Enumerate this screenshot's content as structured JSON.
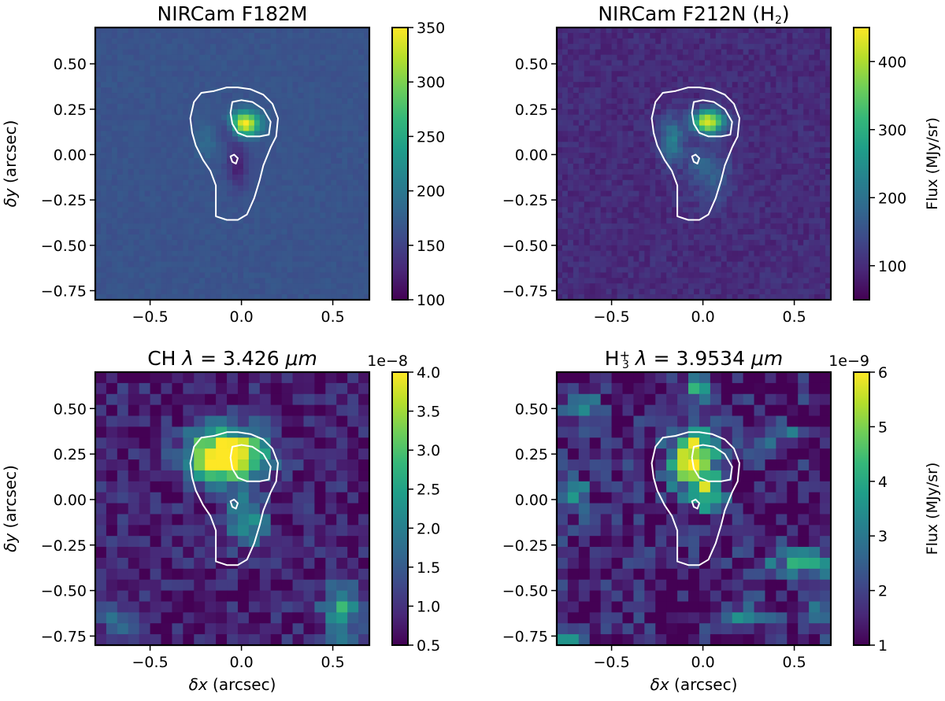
{
  "chart_data": [
    {
      "type": "heatmap",
      "title": "NIRCam F182M",
      "title_parts": [
        {
          "t": "NIRCam F182M"
        }
      ],
      "xlabel": "",
      "ylabel": "δy (arcsec)",
      "xlim": [
        -0.8,
        0.7
      ],
      "ylim": [
        -0.8,
        0.7
      ],
      "xticks": [
        -0.5,
        0.0,
        0.5
      ],
      "xtick_labels": [
        "−0.5",
        "0.0",
        "0.5"
      ],
      "yticks": [
        0.5,
        0.25,
        0.0,
        -0.25,
        -0.5,
        -0.75
      ],
      "ytick_labels": [
        "0.50",
        "0.25",
        "0.00",
        "−0.25",
        "−0.50",
        "−0.75"
      ],
      "colorbar": {
        "vmin": 100,
        "vmax": 350,
        "ticks": [
          100,
          150,
          200,
          250,
          300,
          350
        ],
        "tick_labels": [
          "100",
          "150",
          "200",
          "250",
          "300",
          "350"
        ],
        "label": "",
        "offset": ""
      },
      "grid": {
        "resolution": 0.03,
        "background": 165,
        "noise": 5,
        "seed": 11,
        "blobs": [
          {
            "x": 0.02,
            "y": 0.17,
            "sx": 0.055,
            "sy": 0.045,
            "amp": 190
          },
          {
            "x": -0.19,
            "y": 0.07,
            "sx": 0.04,
            "sy": 0.07,
            "amp": 22
          },
          {
            "x": -0.02,
            "y": -0.05,
            "sx": 0.04,
            "sy": 0.09,
            "amp": -45
          },
          {
            "x": -0.07,
            "y": 0.14,
            "sx": 0.035,
            "sy": 0.04,
            "amp": -35
          }
        ]
      }
    },
    {
      "type": "heatmap",
      "title": "NIRCam F212N (H2)",
      "title_parts": [
        {
          "t": "NIRCam F212N (H"
        },
        {
          "t": "2",
          "sub": true
        },
        {
          "t": ")"
        }
      ],
      "xlabel": "",
      "ylabel": "",
      "xlim": [
        -0.8,
        0.7
      ],
      "ylim": [
        -0.8,
        0.7
      ],
      "xticks": [
        -0.5,
        0.0,
        0.5
      ],
      "xtick_labels": [
        "−0.5",
        "0.0",
        "0.5"
      ],
      "yticks": [
        0.5,
        0.25,
        0.0,
        -0.25,
        -0.5,
        -0.75
      ],
      "ytick_labels": [
        "0.50",
        "0.25",
        "0.00",
        "−0.25",
        "−0.50",
        "−0.75"
      ],
      "colorbar": {
        "vmin": 50,
        "vmax": 450,
        "ticks": [
          100,
          200,
          300,
          400
        ],
        "tick_labels": [
          "100",
          "200",
          "300",
          "400"
        ],
        "label": "Flux (MJy/sr)",
        "offset": ""
      },
      "grid": {
        "resolution": 0.03,
        "background": 100,
        "noise": 18,
        "seed": 23,
        "blobs": [
          {
            "x": 0.03,
            "y": 0.18,
            "sx": 0.06,
            "sy": 0.045,
            "amp": 340
          },
          {
            "x": -0.17,
            "y": 0.08,
            "sx": 0.045,
            "sy": 0.09,
            "amp": 120
          },
          {
            "x": 0.05,
            "y": -0.12,
            "sx": 0.08,
            "sy": 0.1,
            "amp": 70
          },
          {
            "x": -0.04,
            "y": -0.02,
            "sx": 0.05,
            "sy": 0.05,
            "amp": 40
          }
        ]
      }
    },
    {
      "type": "heatmap",
      "title": "CH λ = 3.426 μm",
      "title_parts": [
        {
          "t": "CH "
        },
        {
          "t": "λ",
          "i": true
        },
        {
          "t": " = 3.426 "
        },
        {
          "t": "μ",
          "i": true
        },
        {
          "t": "m",
          "i": true
        }
      ],
      "xlabel": "δx (arcsec)",
      "ylabel": "δy (arcsec)",
      "xlim": [
        -0.8,
        0.7
      ],
      "ylim": [
        -0.8,
        0.7
      ],
      "xticks": [
        -0.5,
        0.0,
        0.5
      ],
      "xtick_labels": [
        "−0.5",
        "0.0",
        "0.5"
      ],
      "yticks": [
        0.5,
        0.25,
        0.0,
        -0.25,
        -0.5,
        -0.75
      ],
      "ytick_labels": [
        "0.50",
        "0.25",
        "0.00",
        "−0.25",
        "−0.50",
        "−0.75"
      ],
      "colorbar": {
        "vmin": 0.5,
        "vmax": 4.0,
        "ticks": [
          0.5,
          1.0,
          1.5,
          2.0,
          2.5,
          3.0,
          3.5,
          4.0
        ],
        "tick_labels": [
          "0.5",
          "1.0",
          "1.5",
          "2.0",
          "2.5",
          "3.0",
          "3.5",
          "4.0"
        ],
        "label": "",
        "offset": "1e−8"
      },
      "grid": {
        "resolution": 0.06,
        "background": 0.8,
        "noise": 0.45,
        "seed": 37,
        "blobs": [
          {
            "x": -0.08,
            "y": 0.24,
            "sx": 0.14,
            "sy": 0.1,
            "amp": 4.2
          },
          {
            "x": 0.03,
            "y": -0.12,
            "sx": 0.07,
            "sy": 0.09,
            "amp": 1.7
          },
          {
            "x": 0.55,
            "y": -0.6,
            "sx": 0.07,
            "sy": 0.12,
            "amp": 1.8
          },
          {
            "x": -0.65,
            "y": -0.65,
            "sx": 0.08,
            "sy": 0.06,
            "amp": 0.9
          }
        ]
      }
    },
    {
      "type": "heatmap",
      "title": "H3+ λ = 3.9534 μm",
      "title_parts": [
        {
          "t": "H"
        },
        {
          "t": "+",
          "sup": true
        },
        {
          "t": "3",
          "sub": true,
          "back": true
        },
        {
          "t": " "
        },
        {
          "t": "λ",
          "i": true
        },
        {
          "t": " = 3.9534 "
        },
        {
          "t": "μ",
          "i": true
        },
        {
          "t": "m",
          "i": true
        }
      ],
      "xlabel": "δx (arcsec)",
      "ylabel": "",
      "xlim": [
        -0.8,
        0.7
      ],
      "ylim": [
        -0.8,
        0.7
      ],
      "xticks": [
        -0.5,
        0.0,
        0.5
      ],
      "xtick_labels": [
        "−0.5",
        "0.0",
        "0.5"
      ],
      "yticks": [
        0.5,
        0.25,
        0.0,
        -0.25,
        -0.5,
        -0.75
      ],
      "ytick_labels": [
        "0.50",
        "0.25",
        "0.00",
        "−0.25",
        "−0.50",
        "−0.75"
      ],
      "colorbar": {
        "vmin": 1,
        "vmax": 6,
        "ticks": [
          1,
          2,
          3,
          4,
          5,
          6
        ],
        "tick_labels": [
          "1",
          "2",
          "3",
          "4",
          "5",
          "6"
        ],
        "label": "Flux (MJy/sr)",
        "offset": "1e−9"
      },
      "grid": {
        "resolution": 0.06,
        "background": 1.4,
        "noise": 0.9,
        "seed": 53,
        "blobs": [
          {
            "x": -0.05,
            "y": 0.22,
            "sx": 0.09,
            "sy": 0.12,
            "amp": 4.8
          },
          {
            "x": 0.04,
            "y": 0.02,
            "sx": 0.05,
            "sy": 0.06,
            "amp": 3.0
          },
          {
            "x": 0.55,
            "y": -0.35,
            "sx": 0.13,
            "sy": 0.06,
            "amp": 2.4
          },
          {
            "x": -0.72,
            "y": 0.02,
            "sx": 0.06,
            "sy": 0.08,
            "amp": 2.2
          },
          {
            "x": -0.03,
            "y": 0.62,
            "sx": 0.06,
            "sy": 0.06,
            "amp": 2.6
          },
          {
            "x": -0.65,
            "y": 0.5,
            "sx": 0.07,
            "sy": 0.06,
            "amp": 1.8
          },
          {
            "x": 0.45,
            "y": 0.35,
            "sx": 0.08,
            "sy": 0.05,
            "amp": 1.4
          },
          {
            "x": 0.2,
            "y": -0.65,
            "sx": 0.1,
            "sy": 0.06,
            "amp": 1.6
          },
          {
            "x": 0.65,
            "y": -0.6,
            "sx": 0.05,
            "sy": 0.1,
            "amp": 2.0
          },
          {
            "x": -0.75,
            "y": -0.75,
            "sx": 0.05,
            "sy": 0.04,
            "amp": 2.5
          }
        ]
      }
    }
  ],
  "contours": {
    "outer": [
      [
        -0.15,
        0.35
      ],
      [
        -0.08,
        0.37
      ],
      [
        -0.02,
        0.37
      ],
      [
        0.05,
        0.36
      ],
      [
        0.12,
        0.33
      ],
      [
        0.17,
        0.28
      ],
      [
        0.2,
        0.2
      ],
      [
        0.19,
        0.1
      ],
      [
        0.16,
        0.04
      ],
      [
        0.14,
        -0.01
      ],
      [
        0.12,
        -0.06
      ],
      [
        0.1,
        -0.14
      ],
      [
        0.07,
        -0.24
      ],
      [
        0.03,
        -0.33
      ],
      [
        -0.02,
        -0.36
      ],
      [
        -0.08,
        -0.36
      ],
      [
        -0.14,
        -0.34
      ],
      [
        -0.14,
        -0.25
      ],
      [
        -0.14,
        -0.17
      ],
      [
        -0.17,
        -0.09
      ],
      [
        -0.21,
        -0.03
      ],
      [
        -0.25,
        0.05
      ],
      [
        -0.27,
        0.12
      ],
      [
        -0.28,
        0.2
      ],
      [
        -0.26,
        0.29
      ],
      [
        -0.22,
        0.34
      ]
    ],
    "inner": [
      [
        -0.05,
        0.29
      ],
      [
        0.0,
        0.3
      ],
      [
        0.06,
        0.29
      ],
      [
        0.12,
        0.25
      ],
      [
        0.16,
        0.18
      ],
      [
        0.15,
        0.11
      ],
      [
        0.1,
        0.1
      ],
      [
        0.03,
        0.1
      ],
      [
        -0.02,
        0.12
      ],
      [
        -0.05,
        0.17
      ],
      [
        -0.06,
        0.23
      ]
    ],
    "small": [
      [
        -0.04,
        0.0
      ],
      [
        -0.02,
        -0.02
      ],
      [
        -0.03,
        -0.05
      ],
      [
        -0.05,
        -0.04
      ],
      [
        -0.06,
        -0.01
      ]
    ]
  },
  "colormap": [
    "#440154",
    "#482878",
    "#3e4989",
    "#31688e",
    "#26828e",
    "#1f9e89",
    "#35b779",
    "#6ece58",
    "#b5de2b",
    "#fde725"
  ]
}
